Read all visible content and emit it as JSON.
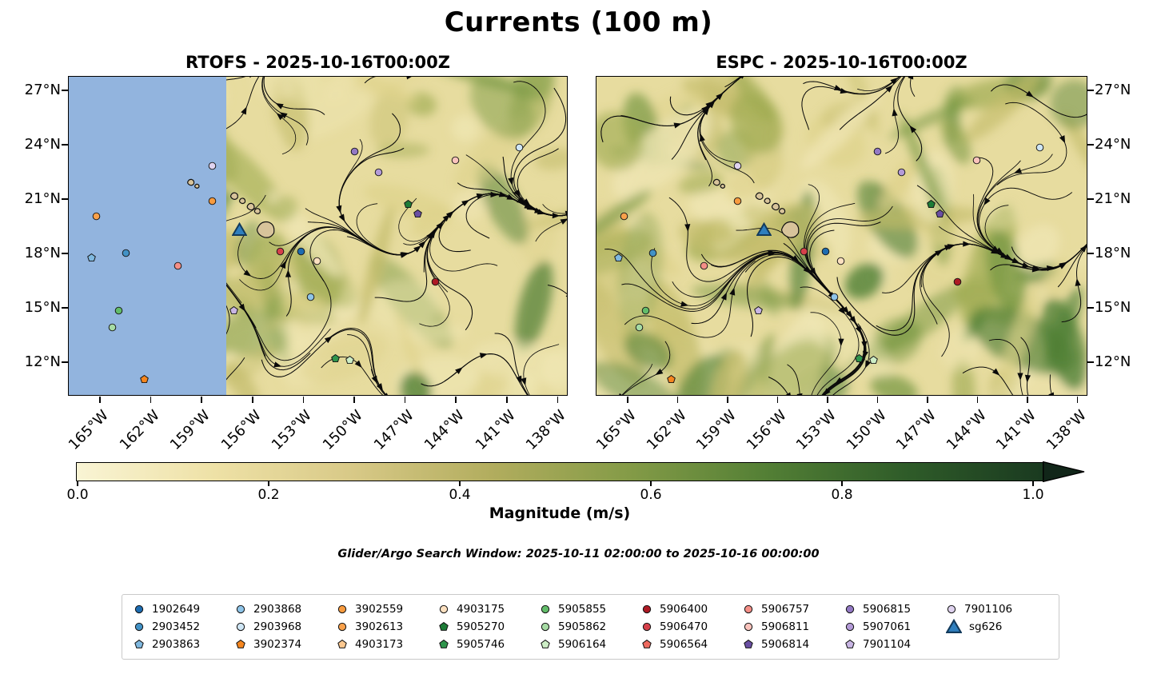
{
  "title": "Currents (100 m)",
  "panels": [
    {
      "model": "RTOFS",
      "title": "RTOFS - 2025-10-16T00:00Z"
    },
    {
      "model": "ESPC",
      "title": "ESPC - 2025-10-16T00:00Z"
    }
  ],
  "axes": {
    "lat_ticks": [
      "27°N",
      "24°N",
      "21°N",
      "18°N",
      "15°N",
      "12°N"
    ],
    "lon_ticks": [
      "165°W",
      "162°W",
      "159°W",
      "156°W",
      "153°W",
      "150°W",
      "147°W",
      "144°W",
      "141°W",
      "138°W"
    ]
  },
  "map": {
    "base_color": "#e7dc9f",
    "mask_color": "#92b4de",
    "land_color": "#d8c49b",
    "stream_color": "#0a0a0a"
  },
  "colorbar": {
    "label": "Magnitude (m/s)",
    "ticks": [
      "0.0",
      "0.2",
      "0.4",
      "0.6",
      "0.8",
      "1.0"
    ],
    "colors": [
      "#f9f4d4",
      "#eee1a6",
      "#d8c987",
      "#b2ad5e",
      "#849b47",
      "#537f35",
      "#2f5c29",
      "#1a3a20"
    ],
    "arrow_color": "#112619"
  },
  "search_window": "Glider/Argo Search Window: 2025-10-11 02:00:00 to 2025-10-16 00:00:00",
  "legend": {
    "entries": [
      {
        "label": "1902649",
        "shape": "circle",
        "color": "#1d6cb1"
      },
      {
        "label": "2903452",
        "shape": "circle",
        "color": "#4292c6"
      },
      {
        "label": "2903863",
        "shape": "pentagon",
        "color": "#7fb8df"
      },
      {
        "label": "2903868",
        "shape": "circle",
        "color": "#8ec4e8"
      },
      {
        "label": "2903968",
        "shape": "circle",
        "color": "#cfe6f5"
      },
      {
        "label": "3902374",
        "shape": "pentagon",
        "color": "#f5861f"
      },
      {
        "label": "3902559",
        "shape": "circle",
        "color": "#f89b3e"
      },
      {
        "label": "3902613",
        "shape": "circle",
        "color": "#f9a14b"
      },
      {
        "label": "4903173",
        "shape": "pentagon",
        "color": "#fbc890"
      },
      {
        "label": "4903175",
        "shape": "circle",
        "color": "#fce0c0"
      },
      {
        "label": "5905270",
        "shape": "pentagon",
        "color": "#1d7c37"
      },
      {
        "label": "5905746",
        "shape": "pentagon",
        "color": "#2f954c"
      },
      {
        "label": "5905855",
        "shape": "circle",
        "color": "#62bd6a"
      },
      {
        "label": "5905862",
        "shape": "circle",
        "color": "#a6dba4"
      },
      {
        "label": "5906164",
        "shape": "pentagon",
        "color": "#cdeec6"
      },
      {
        "label": "5906400",
        "shape": "circle",
        "color": "#ad1a24"
      },
      {
        "label": "5906470",
        "shape": "circle",
        "color": "#d6404a"
      },
      {
        "label": "5906564",
        "shape": "pentagon",
        "color": "#ee6a5f"
      },
      {
        "label": "5906757",
        "shape": "circle",
        "color": "#f58f87"
      },
      {
        "label": "5906811",
        "shape": "circle",
        "color": "#fac3bc"
      },
      {
        "label": "5906814",
        "shape": "pentagon",
        "color": "#6a4fa3"
      },
      {
        "label": "5906815",
        "shape": "circle",
        "color": "#9379c4"
      },
      {
        "label": "5907061",
        "shape": "circle",
        "color": "#b49bd8"
      },
      {
        "label": "7901104",
        "shape": "pentagon",
        "color": "#c9b6e4"
      },
      {
        "label": "7901106",
        "shape": "circle",
        "color": "#dfd3ef"
      },
      {
        "label": "sg626",
        "shape": "triangle",
        "color": "#2f7fbe"
      }
    ]
  },
  "markers": [
    {
      "id": "3902613",
      "shape": "circle",
      "color": "#f9a14b",
      "x": 5.6,
      "y": 43.8
    },
    {
      "id": "2903863",
      "shape": "pentagon",
      "color": "#7fb8df",
      "x": 4.5,
      "y": 57.0
    },
    {
      "id": "2903452",
      "shape": "circle",
      "color": "#4292c6",
      "x": 11.5,
      "y": 55.5
    },
    {
      "id": "5906757",
      "shape": "circle",
      "color": "#f58f87",
      "x": 21.9,
      "y": 59.3
    },
    {
      "id": "5905855",
      "shape": "circle",
      "color": "#62bd6a",
      "x": 10.1,
      "y": 73.5
    },
    {
      "id": "5905862",
      "shape": "circle",
      "color": "#a6dba4",
      "x": 8.8,
      "y": 78.8
    },
    {
      "id": "3902374",
      "shape": "pentagon",
      "color": "#f5861f",
      "x": 15.2,
      "y": 95.0
    },
    {
      "id": "7901106",
      "shape": "circle",
      "color": "#dfd3ef",
      "x": 28.8,
      "y": 28.0
    },
    {
      "id": "3902559",
      "shape": "circle",
      "color": "#f89b3e",
      "x": 28.8,
      "y": 39.0
    },
    {
      "id": "sg626",
      "shape": "triangle",
      "color": "#2f7fbe",
      "x": 34.2,
      "y": 48.0
    },
    {
      "id": "5906470",
      "shape": "circle",
      "color": "#d6404a",
      "x": 42.4,
      "y": 54.8
    },
    {
      "id": "1902649",
      "shape": "circle",
      "color": "#1d6cb1",
      "x": 46.7,
      "y": 55.0
    },
    {
      "id": "4903175",
      "shape": "circle",
      "color": "#fce0c0",
      "x": 49.9,
      "y": 58.0
    },
    {
      "id": "2903868",
      "shape": "circle",
      "color": "#8ec4e8",
      "x": 48.6,
      "y": 69.3
    },
    {
      "id": "7901104",
      "shape": "pentagon",
      "color": "#c9b6e4",
      "x": 33.1,
      "y": 73.5
    },
    {
      "id": "5905746",
      "shape": "pentagon",
      "color": "#2f954c",
      "x": 53.6,
      "y": 88.5
    },
    {
      "id": "5906164",
      "shape": "pentagon",
      "color": "#cdeec6",
      "x": 56.5,
      "y": 89.0
    },
    {
      "id": "5906815",
      "shape": "circle",
      "color": "#9379c4",
      "x": 57.4,
      "y": 23.5
    },
    {
      "id": "5907061",
      "shape": "circle",
      "color": "#b49bd8",
      "x": 62.2,
      "y": 30.0
    },
    {
      "id": "5905270",
      "shape": "pentagon",
      "color": "#1d7c37",
      "x": 68.2,
      "y": 40.0
    },
    {
      "id": "5906814",
      "shape": "pentagon",
      "color": "#6a4fa3",
      "x": 70.1,
      "y": 43.0
    },
    {
      "id": "5906811",
      "shape": "circle",
      "color": "#fac3bc",
      "x": 77.6,
      "y": 26.3
    },
    {
      "id": "5906400",
      "shape": "circle",
      "color": "#ad1a24",
      "x": 73.6,
      "y": 64.5
    },
    {
      "id": "2903968",
      "shape": "circle",
      "color": "#cfe6f5",
      "x": 90.4,
      "y": 22.3
    }
  ]
}
